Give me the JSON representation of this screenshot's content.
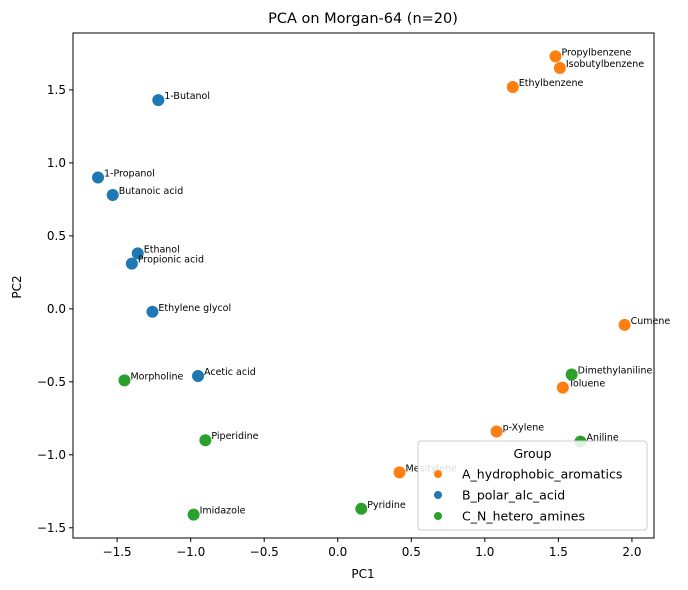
{
  "chart_data": {
    "type": "scatter",
    "title": "PCA on Morgan-64 (n=20)",
    "xlabel": "PC1",
    "ylabel": "PC2",
    "xlim": [
      -1.8,
      2.15
    ],
    "ylim": [
      -1.57,
      1.89
    ],
    "xticks": [
      -1.5,
      -1.0,
      -0.5,
      0.0,
      0.5,
      1.0,
      1.5,
      2.0
    ],
    "yticks": [
      -1.5,
      -1.0,
      -0.5,
      0.0,
      0.5,
      1.0,
      1.5
    ],
    "xtick_labels": [
      "−1.5",
      "−1.0",
      "−0.5",
      "0.0",
      "0.5",
      "1.0",
      "1.5",
      "2.0"
    ],
    "ytick_labels": [
      "−1.5",
      "−1.0",
      "−0.5",
      "0.0",
      "0.5",
      "1.0",
      "1.5"
    ],
    "grid": false,
    "legend": {
      "title": "Group",
      "position": "lower-right"
    },
    "series": [
      {
        "name": "A_hydrophobic_aromatics",
        "color": "#ff7f0e",
        "points": [
          {
            "label": "Propylbenzene",
            "x": 1.48,
            "y": 1.73
          },
          {
            "label": "Isobutylbenzene",
            "x": 1.51,
            "y": 1.65
          },
          {
            "label": "Ethylbenzene",
            "x": 1.19,
            "y": 1.52
          },
          {
            "label": "Cumene",
            "x": 1.95,
            "y": -0.11
          },
          {
            "label": "Toluene",
            "x": 1.53,
            "y": -0.54
          },
          {
            "label": "p-Xylene",
            "x": 1.08,
            "y": -0.84
          },
          {
            "label": "Mesitylene",
            "x": 0.42,
            "y": -1.12
          }
        ]
      },
      {
        "name": "B_polar_alc_acid",
        "color": "#1f77b4",
        "points": [
          {
            "label": "1-Butanol",
            "x": -1.22,
            "y": 1.43
          },
          {
            "label": "1-Propanol",
            "x": -1.63,
            "y": 0.9
          },
          {
            "label": "Butanoic acid",
            "x": -1.53,
            "y": 0.78
          },
          {
            "label": "Ethanol",
            "x": -1.36,
            "y": 0.38
          },
          {
            "label": "Propionic acid",
            "x": -1.4,
            "y": 0.31
          },
          {
            "label": "Ethylene glycol",
            "x": -1.26,
            "y": -0.02
          },
          {
            "label": "Acetic acid",
            "x": -0.95,
            "y": -0.46
          }
        ]
      },
      {
        "name": "C_N_hetero_amines",
        "color": "#2ca02c",
        "points": [
          {
            "label": "Dimethylaniline",
            "x": 1.59,
            "y": -0.45
          },
          {
            "label": "Aniline",
            "x": 1.65,
            "y": -0.91
          },
          {
            "label": "Morpholine",
            "x": -1.45,
            "y": -0.49
          },
          {
            "label": "Piperidine",
            "x": -0.9,
            "y": -0.9
          },
          {
            "label": "Pyridine",
            "x": 0.16,
            "y": -1.37
          },
          {
            "label": "Imidazole",
            "x": -0.98,
            "y": -1.41
          }
        ]
      }
    ]
  }
}
